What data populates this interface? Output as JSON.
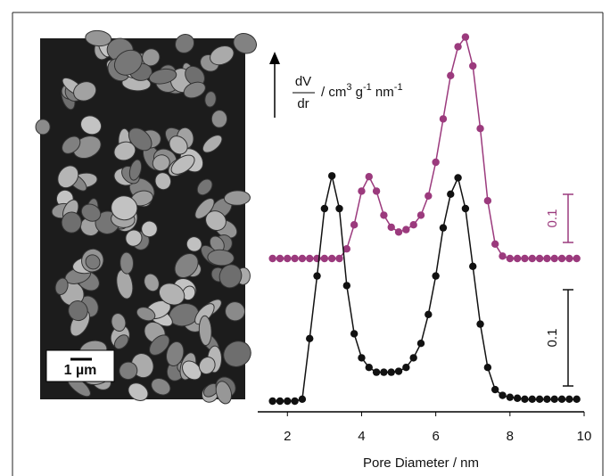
{
  "chart_data": {
    "type": "line",
    "image_scale_label": "1 µm",
    "x_label": "Pore Diameter / nm",
    "y_label": {
      "numerator": "dV",
      "denominator": "dr",
      "unit": "/ cm",
      "unit_exp": "3",
      "unit2": " g",
      "unit2_exp": "-1",
      "unit3": " nm",
      "unit3_exp": "-1"
    },
    "xlim": [
      1.2,
      10
    ],
    "xticks": [
      2,
      4,
      6,
      8,
      10
    ],
    "x": [
      1.6,
      1.8,
      2.0,
      2.2,
      2.4,
      2.6,
      2.8,
      3.0,
      3.2,
      3.4,
      3.6,
      3.8,
      4.0,
      4.2,
      4.4,
      4.6,
      4.8,
      5.0,
      5.2,
      5.4,
      5.6,
      5.8,
      6.0,
      6.2,
      6.4,
      6.6,
      6.8,
      7.0,
      7.2,
      7.4,
      7.6,
      7.8,
      8.0,
      8.2,
      8.4,
      8.6,
      8.8,
      9.0,
      9.2,
      9.4,
      9.6,
      9.8
    ],
    "series": [
      {
        "color": "#9b3a7d",
        "scale_bar": 0.1,
        "values": [
          0,
          0,
          0,
          0,
          0,
          0,
          0,
          0,
          0,
          0,
          0.02,
          0.07,
          0.14,
          0.17,
          0.14,
          0.09,
          0.065,
          0.055,
          0.06,
          0.07,
          0.09,
          0.13,
          0.2,
          0.29,
          0.38,
          0.44,
          0.46,
          0.4,
          0.27,
          0.12,
          0.03,
          0.005,
          0,
          0,
          0,
          0,
          0,
          0,
          0,
          0,
          0,
          0
        ]
      },
      {
        "color": "#111111",
        "scale_bar": 0.1,
        "values": [
          0,
          0,
          0,
          0,
          0.002,
          0.065,
          0.13,
          0.2,
          0.234,
          0.2,
          0.12,
          0.07,
          0.045,
          0.035,
          0.03,
          0.03,
          0.03,
          0.031,
          0.035,
          0.045,
          0.06,
          0.09,
          0.13,
          0.18,
          0.215,
          0.232,
          0.2,
          0.14,
          0.08,
          0.035,
          0.012,
          0.006,
          0.004,
          0.003,
          0.002,
          0.002,
          0.002,
          0.002,
          0.002,
          0.002,
          0.002,
          0.002
        ]
      }
    ]
  }
}
